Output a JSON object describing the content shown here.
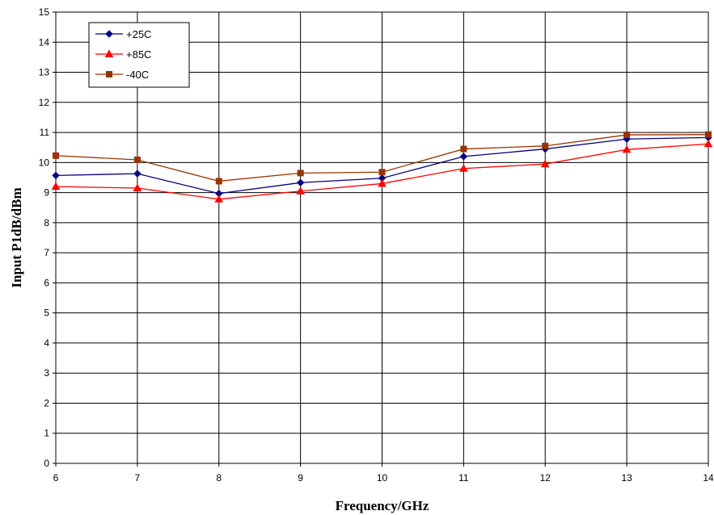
{
  "chart_data": {
    "type": "line",
    "title": "",
    "xlabel": "Frequency/GHz",
    "ylabel": "Input P1dB/dBm",
    "x": [
      6,
      7,
      8,
      9,
      10,
      11,
      12,
      13,
      14
    ],
    "xlim": [
      6,
      14
    ],
    "ylim": [
      0,
      15
    ],
    "xticks": [
      "6",
      "7",
      "8",
      "9",
      "10",
      "11",
      "12",
      "13",
      "14"
    ],
    "yticks": [
      "0",
      "1",
      "2",
      "3",
      "4",
      "5",
      "6",
      "7",
      "8",
      "9",
      "10",
      "11",
      "12",
      "13",
      "14",
      "15"
    ],
    "grid": true,
    "legend_position": "top-left",
    "series": [
      {
        "name": "+25C",
        "color": "#000080",
        "marker": "diamond",
        "values": [
          9.57,
          9.63,
          8.97,
          9.33,
          9.48,
          10.2,
          10.45,
          10.78,
          10.83
        ]
      },
      {
        "name": "+85C",
        "color": "#ff0000",
        "marker": "triangle",
        "values": [
          9.2,
          9.15,
          8.78,
          9.05,
          9.3,
          9.8,
          9.95,
          10.43,
          10.62
        ]
      },
      {
        "name": "-40C",
        "color": "#993300",
        "marker": "square",
        "values": [
          10.23,
          10.09,
          9.38,
          9.65,
          9.68,
          10.45,
          10.55,
          10.92,
          10.93
        ]
      }
    ]
  }
}
